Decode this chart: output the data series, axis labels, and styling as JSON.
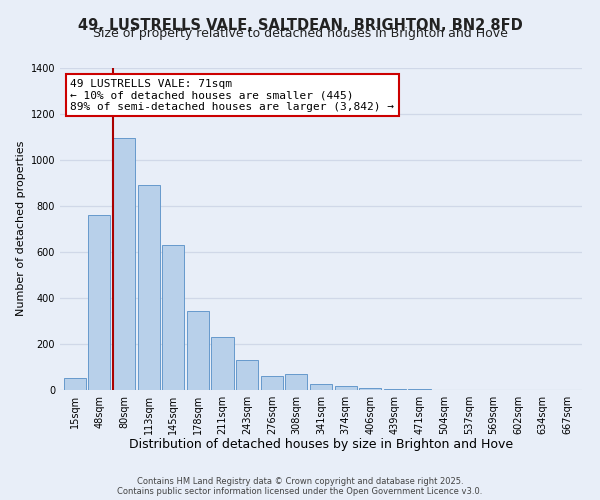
{
  "title": "49, LUSTRELLS VALE, SALTDEAN, BRIGHTON, BN2 8FD",
  "subtitle": "Size of property relative to detached houses in Brighton and Hove",
  "xlabel": "Distribution of detached houses by size in Brighton and Hove",
  "ylabel": "Number of detached properties",
  "categories": [
    "15sqm",
    "48sqm",
    "80sqm",
    "113sqm",
    "145sqm",
    "178sqm",
    "211sqm",
    "243sqm",
    "276sqm",
    "308sqm",
    "341sqm",
    "374sqm",
    "406sqm",
    "439sqm",
    "471sqm",
    "504sqm",
    "537sqm",
    "569sqm",
    "602sqm",
    "634sqm",
    "667sqm"
  ],
  "values": [
    50,
    760,
    1095,
    890,
    630,
    345,
    232,
    132,
    62,
    70,
    28,
    18,
    10,
    5,
    3,
    2,
    1,
    1,
    0,
    0,
    1
  ],
  "bar_color": "#b8d0ea",
  "bar_edge_color": "#6699cc",
  "vline_color": "#aa0000",
  "annotation_text": "49 LUSTRELLS VALE: 71sqm\n← 10% of detached houses are smaller (445)\n89% of semi-detached houses are larger (3,842) →",
  "annotation_box_color": "#ffffff",
  "annotation_box_edge": "#cc0000",
  "ylim": [
    0,
    1400
  ],
  "yticks": [
    0,
    200,
    400,
    600,
    800,
    1000,
    1200,
    1400
  ],
  "background_color": "#e8eef8",
  "grid_color": "#d0d8e8",
  "footer1": "Contains HM Land Registry data © Crown copyright and database right 2025.",
  "footer2": "Contains public sector information licensed under the Open Government Licence v3.0.",
  "title_fontsize": 10.5,
  "subtitle_fontsize": 9,
  "xlabel_fontsize": 9,
  "ylabel_fontsize": 8,
  "tick_fontsize": 7,
  "annotation_fontsize": 8,
  "footer_fontsize": 6
}
